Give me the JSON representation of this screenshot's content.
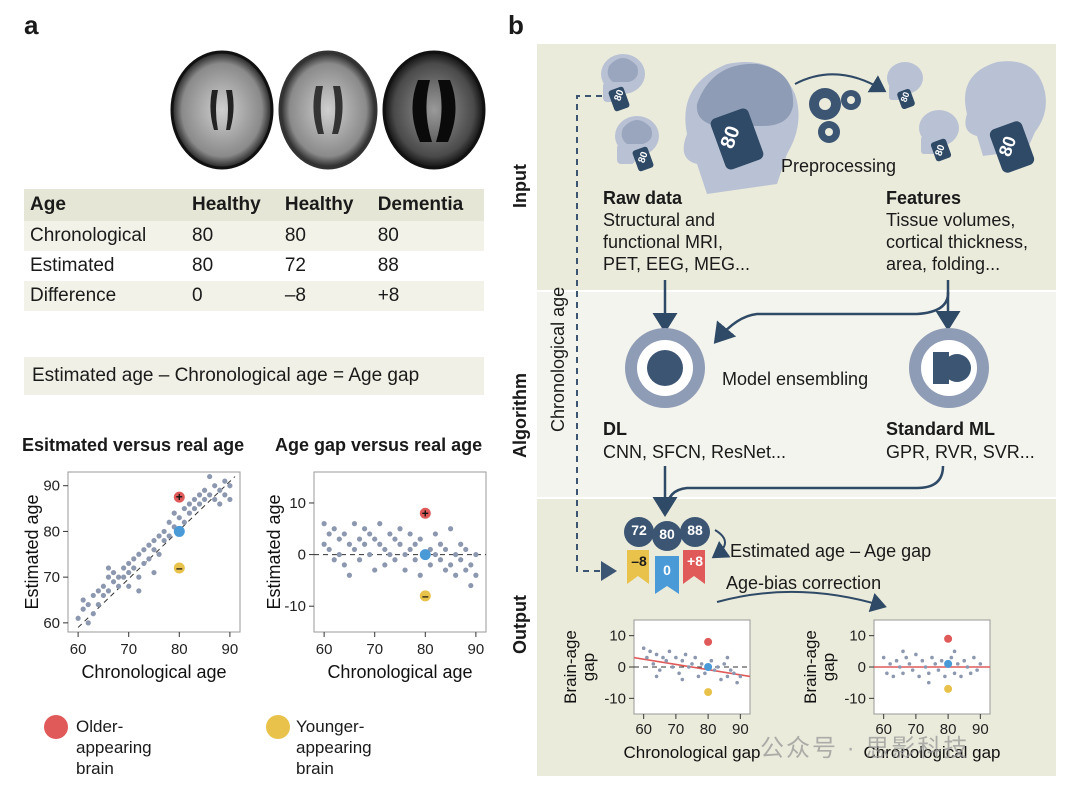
{
  "panel_a": {
    "letter": "a",
    "table": {
      "headers": [
        "Age",
        "Healthy",
        "Healthy",
        "Dementia"
      ],
      "rows": [
        [
          "Chronological",
          "80",
          "80",
          "80"
        ],
        [
          "Estimated",
          "80",
          "72",
          "88"
        ],
        [
          "Difference",
          "0",
          "–8",
          "+8"
        ]
      ]
    },
    "formula": "Estimated age – Chronological age  =  Age gap",
    "legend": {
      "older": "Older-\nappearing\nbrain",
      "younger": "Younger-\nappearing\nbrain",
      "older_color": "#e05a5a",
      "younger_color": "#e8c24a"
    }
  },
  "panel_b": {
    "letter": "b",
    "sections": {
      "input": "Input",
      "algorithm": "Algorithm",
      "output": "Output"
    },
    "chronological_age_label": "Chronological age",
    "preprocessing": "Preprocessing",
    "raw_data": {
      "title": "Raw data",
      "text": "Structural and\nfunctional MRI,\nPET, EEG, MEG..."
    },
    "features": {
      "title": "Features",
      "text": "Tissue volumes,\ncortical thickness,\narea, folding..."
    },
    "model_ensembling": "Model ensembling",
    "dl": {
      "title": "DL",
      "text": "CNN, SFCN, ResNet..."
    },
    "standard_ml": {
      "title": "Standard  ML",
      "text": "GPR, RVR, SVR..."
    },
    "estimated_age_gap": "Estimated age – Age gap",
    "age_bias_correction": "Age-bias correction",
    "tags": {
      "left": "72",
      "mid": "80",
      "right": "88",
      "left_gap": "–8",
      "mid_gap": "0",
      "right_gap": "+8"
    },
    "head_tags": [
      "80",
      "80",
      "80",
      "80",
      "80",
      "80"
    ],
    "watermark": "公众号 · 思影科技"
  },
  "chart_data": [
    {
      "type": "scatter",
      "title": "Esitmated versus real age",
      "xlabel": "Chronological age",
      "ylabel": "Estimated age",
      "xlim": [
        58,
        92
      ],
      "ylim": [
        58,
        93
      ],
      "xticks": [
        "60",
        "70",
        "80",
        "90"
      ],
      "yticks": [
        "60",
        "70",
        "80",
        "90"
      ],
      "points": [
        [
          60,
          61
        ],
        [
          61,
          65
        ],
        [
          61,
          63
        ],
        [
          62,
          64
        ],
        [
          62,
          60
        ],
        [
          63,
          66
        ],
        [
          63,
          62
        ],
        [
          64,
          67
        ],
        [
          64,
          64
        ],
        [
          65,
          68
        ],
        [
          65,
          66
        ],
        [
          66,
          70
        ],
        [
          66,
          67
        ],
        [
          67,
          69
        ],
        [
          67,
          71
        ],
        [
          68,
          68
        ],
        [
          68,
          70
        ],
        [
          69,
          72
        ],
        [
          69,
          70
        ],
        [
          70,
          71
        ],
        [
          70,
          73
        ],
        [
          71,
          72
        ],
        [
          71,
          74
        ],
        [
          72,
          75
        ],
        [
          72,
          70
        ],
        [
          73,
          73
        ],
        [
          73,
          76
        ],
        [
          74,
          74
        ],
        [
          74,
          77
        ],
        [
          75,
          76
        ],
        [
          75,
          78
        ],
        [
          76,
          75
        ],
        [
          76,
          79
        ],
        [
          77,
          78
        ],
        [
          77,
          80
        ],
        [
          78,
          82
        ],
        [
          78,
          79
        ],
        [
          79,
          81
        ],
        [
          79,
          84
        ],
        [
          80,
          83
        ],
        [
          81,
          85
        ],
        [
          81,
          82
        ],
        [
          82,
          86
        ],
        [
          82,
          84
        ],
        [
          83,
          87
        ],
        [
          83,
          85
        ],
        [
          84,
          88
        ],
        [
          84,
          86
        ],
        [
          85,
          89
        ],
        [
          85,
          87
        ],
        [
          86,
          88
        ],
        [
          86,
          92
        ],
        [
          87,
          90
        ],
        [
          87,
          87
        ],
        [
          88,
          89
        ],
        [
          88,
          86
        ],
        [
          89,
          91
        ],
        [
          89,
          88
        ],
        [
          90,
          87
        ],
        [
          90,
          90
        ],
        [
          72,
          67
        ],
        [
          75,
          71
        ],
        [
          70,
          68
        ],
        [
          66,
          72
        ]
      ],
      "highlights": [
        {
          "x": 80,
          "y": 87.5,
          "color": "#e05a5a",
          "label": "+"
        },
        {
          "x": 80,
          "y": 80,
          "color": "#4a9ad8",
          "label": ""
        },
        {
          "x": 80,
          "y": 72,
          "color": "#e8c24a",
          "label": "–"
        }
      ]
    },
    {
      "type": "scatter",
      "title": "Age gap versus real age",
      "xlabel": "Chronological age",
      "ylabel": "Estimated age",
      "xlim": [
        58,
        92
      ],
      "ylim": [
        -15,
        16
      ],
      "xticks": [
        "60",
        "70",
        "80",
        "90"
      ],
      "yticks": [
        "-10",
        "0",
        "10"
      ],
      "points": [
        [
          60,
          6
        ],
        [
          60,
          2
        ],
        [
          61,
          4
        ],
        [
          61,
          1
        ],
        [
          62,
          5
        ],
        [
          62,
          -1
        ],
        [
          63,
          3
        ],
        [
          63,
          0
        ],
        [
          64,
          4
        ],
        [
          64,
          -2
        ],
        [
          65,
          2
        ],
        [
          65,
          -4
        ],
        [
          66,
          6
        ],
        [
          66,
          1
        ],
        [
          67,
          3
        ],
        [
          67,
          -1
        ],
        [
          68,
          5
        ],
        [
          68,
          2
        ],
        [
          69,
          0
        ],
        [
          69,
          4
        ],
        [
          70,
          3
        ],
        [
          70,
          -3
        ],
        [
          71,
          2
        ],
        [
          71,
          6
        ],
        [
          72,
          1
        ],
        [
          72,
          -2
        ],
        [
          73,
          4
        ],
        [
          73,
          0
        ],
        [
          74,
          3
        ],
        [
          74,
          -1
        ],
        [
          75,
          2
        ],
        [
          75,
          5
        ],
        [
          76,
          0
        ],
        [
          76,
          -3
        ],
        [
          77,
          1
        ],
        [
          77,
          4
        ],
        [
          78,
          -1
        ],
        [
          78,
          2
        ],
        [
          79,
          3
        ],
        [
          79,
          -4
        ],
        [
          81,
          1
        ],
        [
          81,
          -2
        ],
        [
          82,
          4
        ],
        [
          82,
          0
        ],
        [
          83,
          -1
        ],
        [
          83,
          2
        ],
        [
          84,
          -3
        ],
        [
          84,
          1
        ],
        [
          85,
          5
        ],
        [
          85,
          -2
        ],
        [
          86,
          0
        ],
        [
          86,
          -4
        ],
        [
          87,
          2
        ],
        [
          87,
          -1
        ],
        [
          88,
          -3
        ],
        [
          88,
          1
        ],
        [
          89,
          -6
        ],
        [
          89,
          -2
        ],
        [
          90,
          0
        ],
        [
          90,
          -4
        ]
      ],
      "highlights": [
        {
          "x": 80,
          "y": 8,
          "color": "#e05a5a",
          "label": "+"
        },
        {
          "x": 80,
          "y": 0,
          "color": "#4a9ad8",
          "label": ""
        },
        {
          "x": 80,
          "y": -8,
          "color": "#e8c24a",
          "label": "–"
        }
      ]
    },
    {
      "type": "scatter",
      "title": "",
      "xlabel": "Chronological gap",
      "ylabel": "Brain-age\ngap",
      "xlim": [
        57,
        93
      ],
      "ylim": [
        -15,
        15
      ],
      "xticks": [
        "60",
        "70",
        "80",
        "90"
      ],
      "yticks": [
        "-10",
        "0",
        "10"
      ],
      "regression_line": [
        [
          57,
          3
        ],
        [
          93,
          -3
        ]
      ],
      "points": [
        [
          60,
          6
        ],
        [
          61,
          3
        ],
        [
          62,
          5
        ],
        [
          63,
          1
        ],
        [
          64,
          4
        ],
        [
          65,
          -1
        ],
        [
          66,
          3
        ],
        [
          67,
          2
        ],
        [
          68,
          5
        ],
        [
          69,
          0
        ],
        [
          70,
          3
        ],
        [
          71,
          -2
        ],
        [
          72,
          2
        ],
        [
          73,
          4
        ],
        [
          74,
          0
        ],
        [
          75,
          1
        ],
        [
          76,
          3
        ],
        [
          77,
          -3
        ],
        [
          78,
          1
        ],
        [
          79,
          -2
        ],
        [
          81,
          2
        ],
        [
          82,
          -1
        ],
        [
          83,
          0
        ],
        [
          84,
          -4
        ],
        [
          85,
          1
        ],
        [
          86,
          -3
        ],
        [
          87,
          -1
        ],
        [
          88,
          -2
        ],
        [
          89,
          -5
        ],
        [
          90,
          -3
        ],
        [
          64,
          -3
        ],
        [
          72,
          -4
        ],
        [
          86,
          3
        ]
      ],
      "highlights": [
        {
          "x": 80,
          "y": 8,
          "color": "#e05a5a"
        },
        {
          "x": 80,
          "y": 0,
          "color": "#4a9ad8"
        },
        {
          "x": 80,
          "y": -8,
          "color": "#e8c24a"
        }
      ]
    },
    {
      "type": "scatter",
      "title": "",
      "xlabel": "Chronological gap",
      "ylabel": "Brain-age\ngap",
      "xlim": [
        57,
        93
      ],
      "ylim": [
        -15,
        15
      ],
      "xticks": [
        "60",
        "70",
        "80",
        "90"
      ],
      "yticks": [
        "-10",
        "0",
        "10"
      ],
      "regression_line": [
        [
          57,
          0
        ],
        [
          93,
          0
        ]
      ],
      "points": [
        [
          60,
          3
        ],
        [
          61,
          -2
        ],
        [
          62,
          1
        ],
        [
          63,
          -3
        ],
        [
          64,
          2
        ],
        [
          65,
          0
        ],
        [
          66,
          -2
        ],
        [
          67,
          3
        ],
        [
          68,
          1
        ],
        [
          69,
          -1
        ],
        [
          70,
          4
        ],
        [
          71,
          -3
        ],
        [
          72,
          2
        ],
        [
          73,
          0
        ],
        [
          74,
          -2
        ],
        [
          75,
          3
        ],
        [
          76,
          1
        ],
        [
          77,
          -1
        ],
        [
          78,
          2
        ],
        [
          79,
          -3
        ],
        [
          81,
          3
        ],
        [
          82,
          -2
        ],
        [
          83,
          1
        ],
        [
          84,
          -3
        ],
        [
          85,
          2
        ],
        [
          86,
          0
        ],
        [
          87,
          -2
        ],
        [
          88,
          3
        ],
        [
          89,
          -1
        ],
        [
          90,
          1
        ],
        [
          66,
          5
        ],
        [
          82,
          5
        ],
        [
          74,
          -5
        ]
      ],
      "highlights": [
        {
          "x": 80,
          "y": 9,
          "color": "#e05a5a"
        },
        {
          "x": 80,
          "y": 1,
          "color": "#4a9ad8"
        },
        {
          "x": 80,
          "y": -7,
          "color": "#e8c24a"
        }
      ]
    }
  ]
}
